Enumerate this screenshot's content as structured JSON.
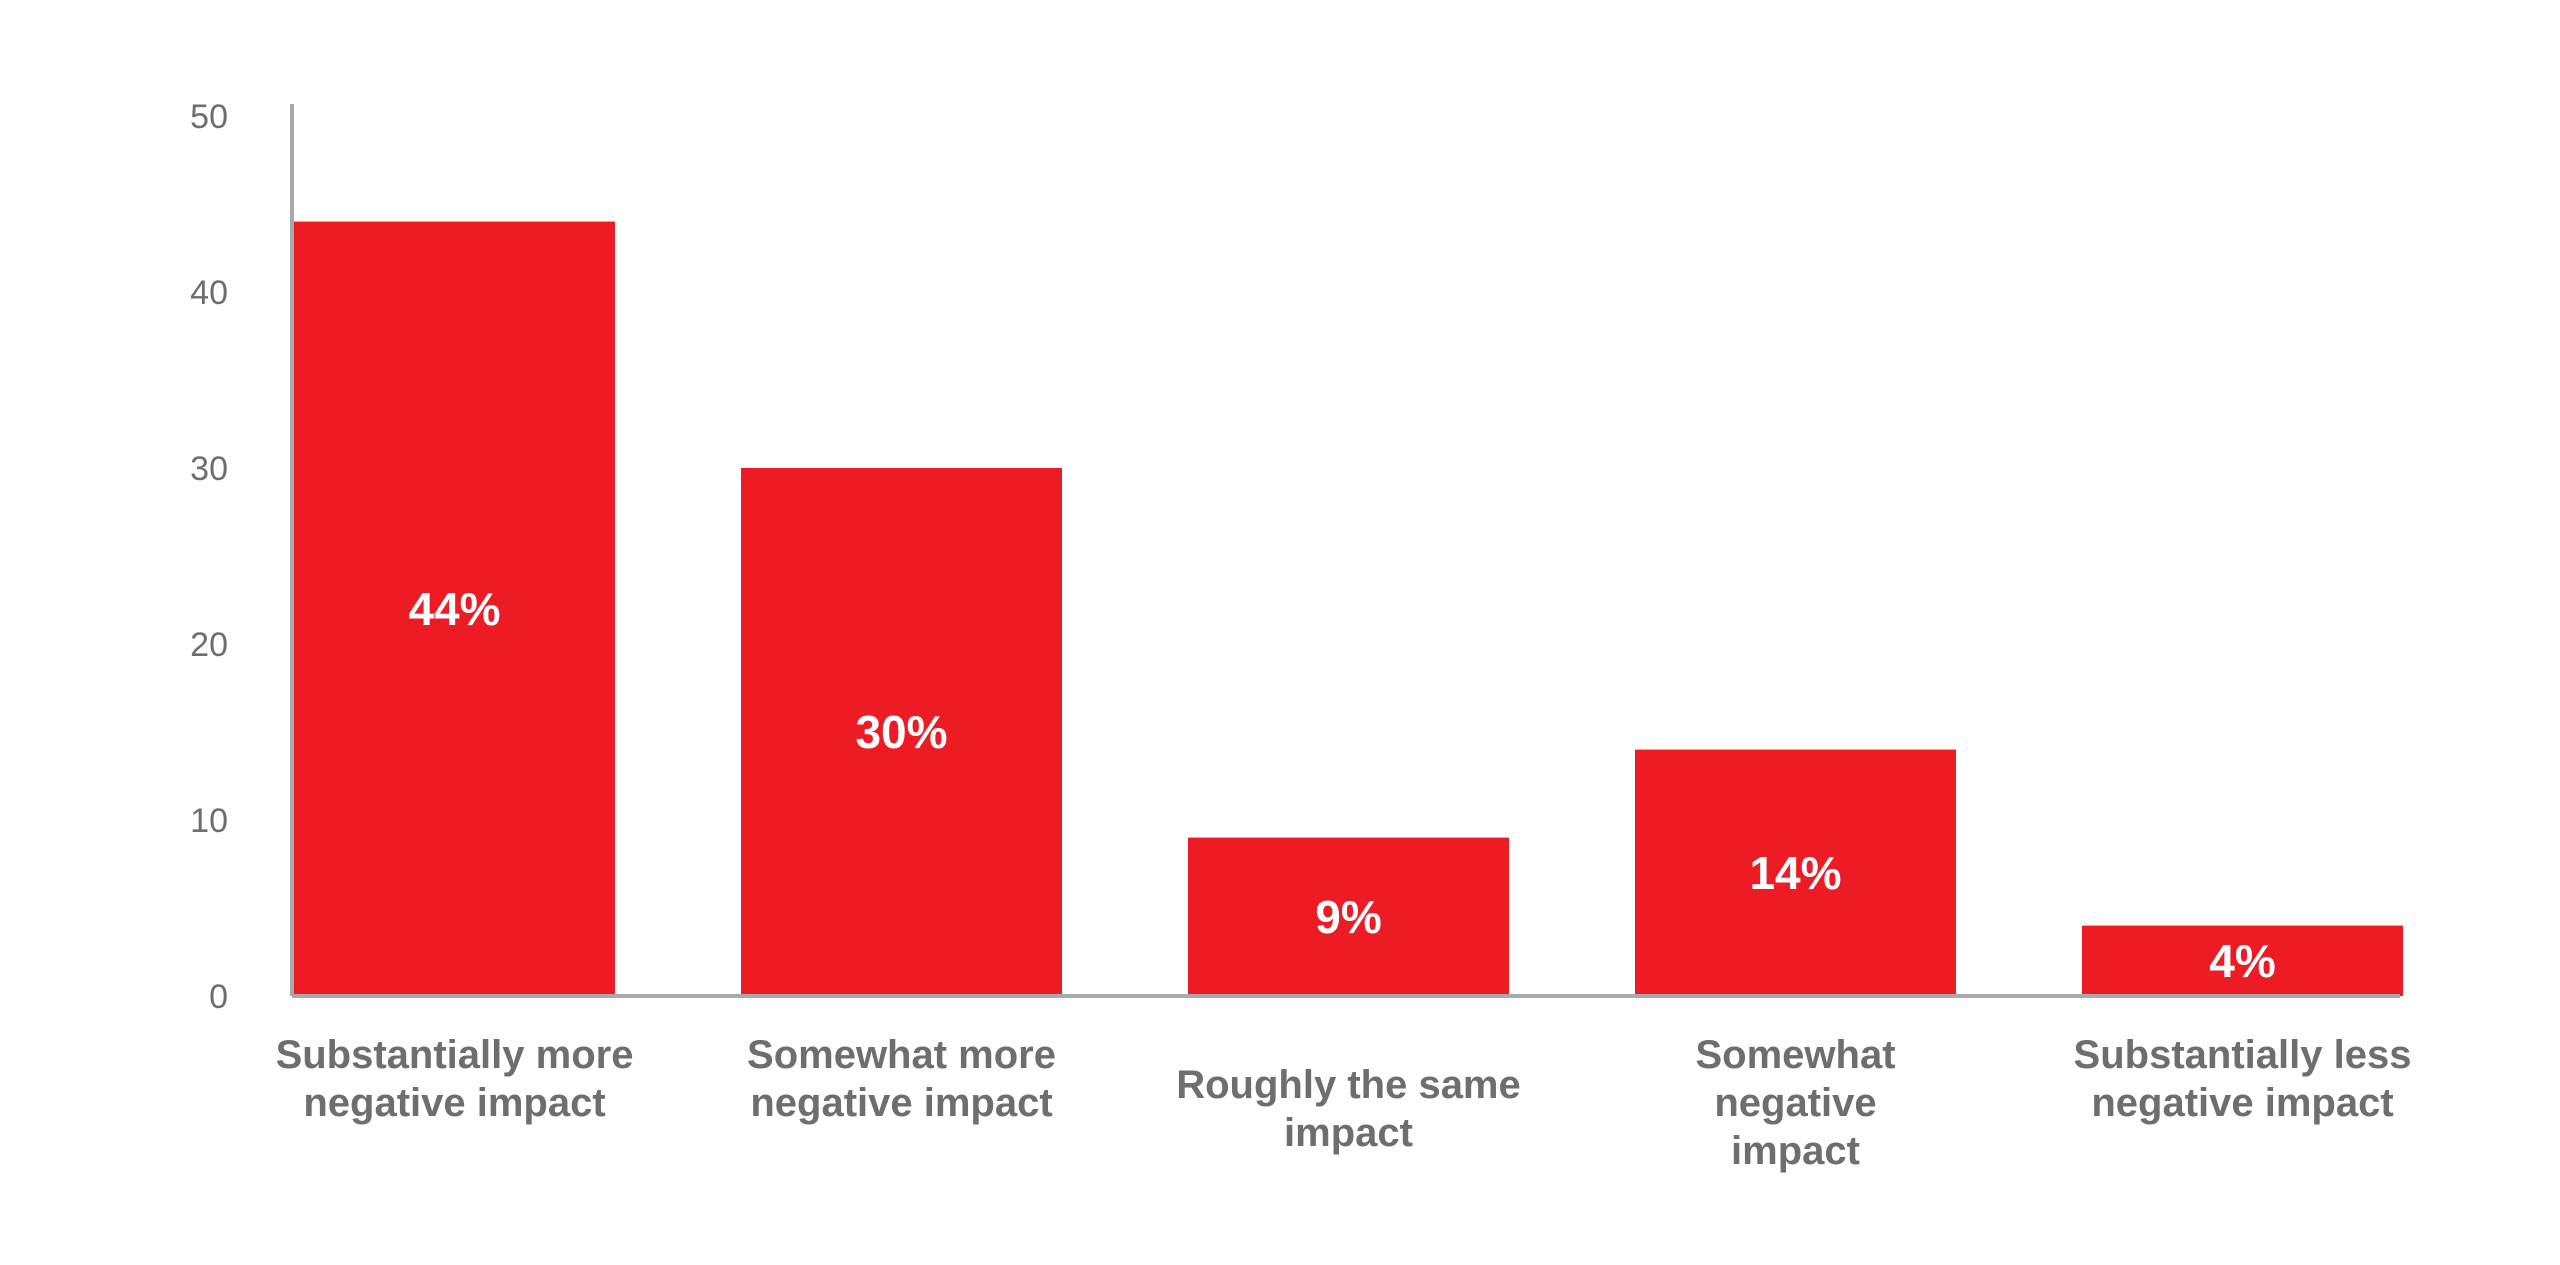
{
  "chart_data": {
    "type": "bar",
    "title": "",
    "xlabel": "",
    "ylabel": "",
    "categories": [
      [
        "Substantially more",
        "negative impact"
      ],
      [
        "Somewhat more",
        "negative impact"
      ],
      [
        "Roughly the same",
        "impact"
      ],
      [
        "Somewhat",
        "negative",
        "impact"
      ],
      [
        "Substantially less",
        "negative impact"
      ]
    ],
    "values": [
      44,
      30,
      9,
      14,
      4
    ],
    "data_labels": [
      "44%",
      "30%",
      "9%",
      "14%",
      "4%"
    ],
    "ylim": [
      0,
      50
    ],
    "yticks": [
      0,
      10,
      20,
      30,
      40,
      50
    ],
    "grid": false,
    "legend": "none",
    "colors": {
      "bar": "#ed1c24",
      "axis": "#a7a9ac",
      "text": "#6d6e71",
      "bar_label": "#ffffff"
    }
  }
}
